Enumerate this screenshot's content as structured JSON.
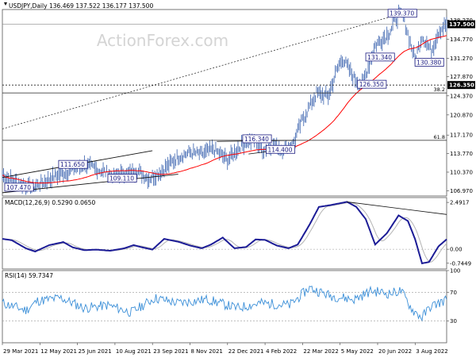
{
  "chart_data": {
    "type": "line",
    "symbol": "USDJPY",
    "timeframe": "Daily",
    "header": {
      "symbol_text": "USDJPY,Daily",
      "ohlc_text": "136.469 137.522 136.177 137.500"
    },
    "watermark": "ActionForex.com",
    "x_ticks": [
      "29 Mar 2021",
      "12 May 2021",
      "25 Jun 2021",
      "10 Aug 2021",
      "23 Sep 2021",
      "8 Nov 2021",
      "22 Dec 2021",
      "4 Feb 2022",
      "22 Mar 2022",
      "5 May 2022",
      "20 Jun 2022",
      "3 Aug 2022"
    ],
    "price_panel": {
      "ylim": [
        106.0,
        140.2
      ],
      "y_ticks": [
        106.97,
        110.37,
        113.77,
        117.17,
        120.87,
        124.37,
        127.87,
        131.27,
        134.77,
        138.27
      ],
      "y_tick_labels": [
        "106.970",
        "110.370",
        "113.770",
        "117.170",
        "120.870",
        "124.370",
        "127.870",
        "131.270",
        "134.770",
        "138.270"
      ],
      "current_price": 137.5,
      "current_price_label": "137.500",
      "support_level": 126.35,
      "support_level_label": "126.350",
      "fib_levels": [
        {
          "label": "38.2",
          "value": 124.9
        },
        {
          "label": "61.8",
          "value": 116.2
        }
      ],
      "ma_line_color": "#ff0000",
      "price_line_color": "#4a6fb5",
      "annotations": [
        {
          "label": "139.370",
          "value": 139.37
        },
        {
          "label": "131.340",
          "value": 131.34
        },
        {
          "label": "130.380",
          "value": 130.38
        },
        {
          "label": "126.350",
          "value": 126.35
        },
        {
          "label": "116.340",
          "value": 116.34
        },
        {
          "label": "111.650",
          "value": 111.65
        },
        {
          "label": "114.400",
          "value": 114.4
        },
        {
          "label": "109.110",
          "value": 109.11
        },
        {
          "label": "107.470",
          "value": 107.47
        }
      ]
    },
    "macd_panel": {
      "title": "MACD(12,26,9) 0.5290 0.0650",
      "ylim": [
        -1.05,
        2.75
      ],
      "y_ticks": [
        2.4917,
        0.0,
        -0.7449
      ],
      "y_tick_labels": [
        "2.4917",
        "0.00",
        "-0.7449"
      ],
      "line_color": "#1c1c96",
      "signal_color": "#b4b4b4"
    },
    "rsi_panel": {
      "title": "RSI(14) 59.7347",
      "ylim": [
        0,
        100
      ],
      "y_ticks": [
        100,
        70,
        30
      ],
      "y_tick_labels": [
        "100",
        "70",
        "30"
      ],
      "current_value": 59.7347,
      "line_color": "#3b8fd8"
    },
    "grid": false
  }
}
